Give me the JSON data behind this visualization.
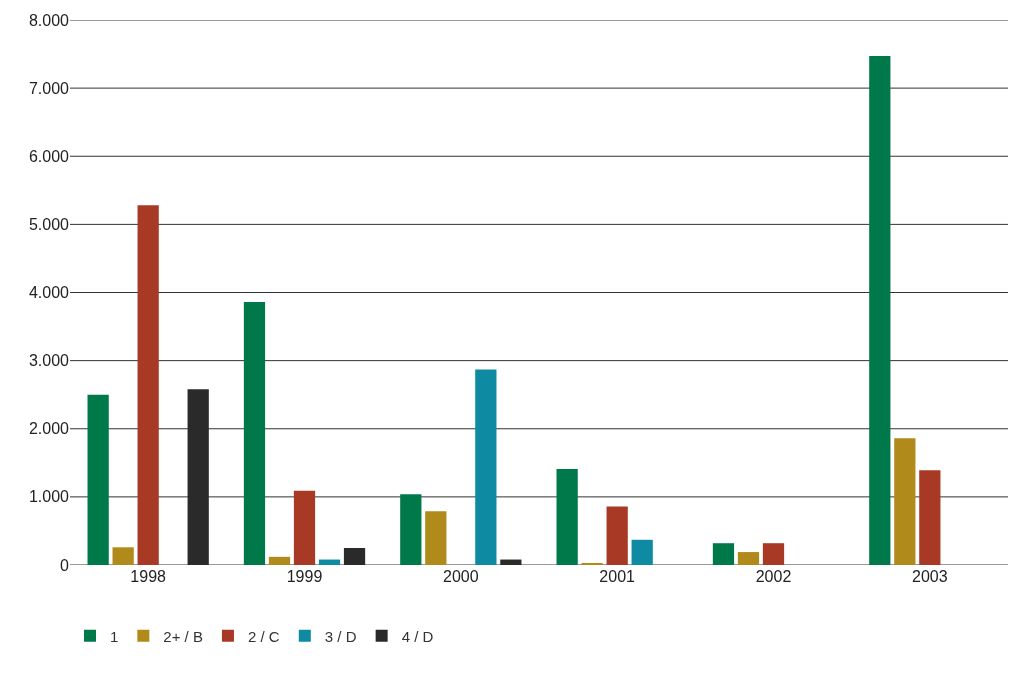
{
  "chart_data": {
    "type": "bar",
    "categories": [
      "1998",
      "1999",
      "2000",
      "2001",
      "2002",
      "2003"
    ],
    "series": [
      {
        "name": "1",
        "color": "#00794a",
        "values": [
          2500,
          3860,
          1040,
          1410,
          320,
          7470
        ]
      },
      {
        "name": "2+ / B",
        "color": "#b08a1a",
        "values": [
          260,
          120,
          790,
          30,
          190,
          1860
        ]
      },
      {
        "name": "2 / C",
        "color": "#a83a25",
        "values": [
          5280,
          1090,
          0,
          860,
          320,
          1390
        ]
      },
      {
        "name": "3 / D",
        "color": "#0e8aa3",
        "values": [
          0,
          80,
          2870,
          370,
          0,
          0
        ]
      },
      {
        "name": "4 / D",
        "color": "#2a2a2a",
        "values": [
          2580,
          250,
          80,
          0,
          0,
          0
        ]
      }
    ],
    "ylim": [
      0,
      8000
    ],
    "yticks": [
      {
        "value": 0,
        "label": "0"
      },
      {
        "value": 1000,
        "label": "1.000"
      },
      {
        "value": 2000,
        "label": "2.000"
      },
      {
        "value": 3000,
        "label": "3.000"
      },
      {
        "value": 4000,
        "label": "4.000"
      },
      {
        "value": 5000,
        "label": "5.000"
      },
      {
        "value": 6000,
        "label": "6.000"
      },
      {
        "value": 7000,
        "label": "7.000"
      },
      {
        "value": 8000,
        "label": "8.000"
      }
    ],
    "grid": "y",
    "legend": "bottom left"
  }
}
